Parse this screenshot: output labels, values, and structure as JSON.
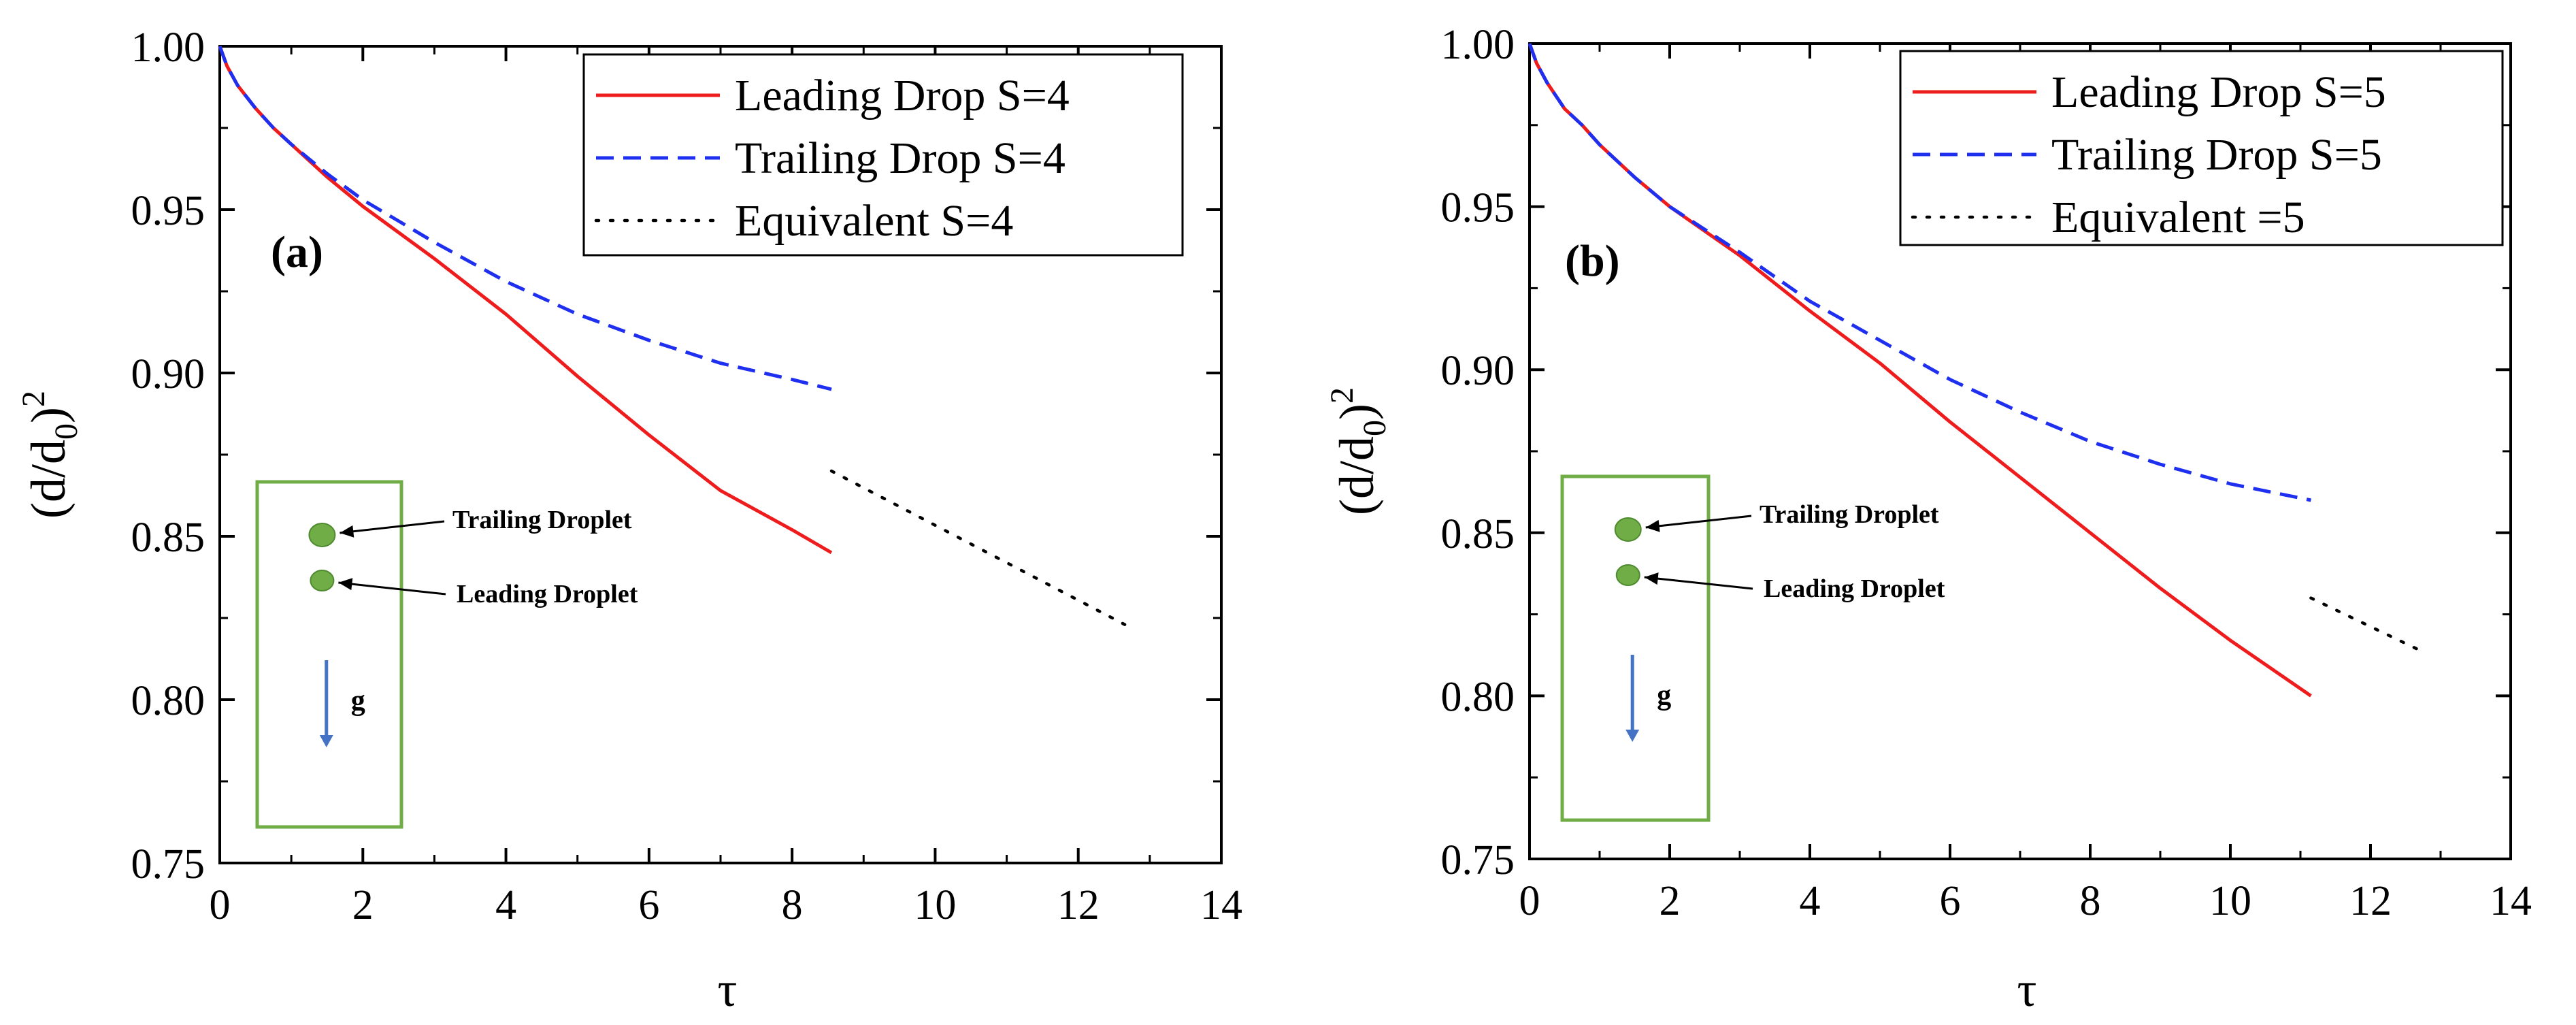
{
  "chart_data": [
    {
      "type": "line",
      "panel_label": "(a)",
      "xlabel": "τ",
      "ylabel": {
        "base": "(d/d",
        "sub": "0",
        "close": ")",
        "sup": "2"
      },
      "xlim": [
        0,
        14
      ],
      "ylim": [
        0.75,
        1.0
      ],
      "xticks": [
        "0",
        "2",
        "4",
        "6",
        "8",
        "10",
        "12",
        "14"
      ],
      "yticks": [
        "0.75",
        "0.80",
        "0.85",
        "0.90",
        "0.95",
        "1.00"
      ],
      "legend_position": "top-right",
      "series": [
        {
          "name": "Leading Drop S=4",
          "style": "solid",
          "color": "#ee1c1c",
          "x": [
            0,
            0.1,
            0.25,
            0.5,
            0.75,
            1.0,
            1.5,
            2.0,
            3.0,
            4.0,
            5.0,
            6.0,
            7.0,
            8.0,
            8.55
          ],
          "y": [
            1.0,
            0.994,
            0.988,
            0.981,
            0.975,
            0.97,
            0.96,
            0.951,
            0.935,
            0.918,
            0.899,
            0.881,
            0.864,
            0.852,
            0.845
          ]
        },
        {
          "name": "Trailing Drop S=4",
          "style": "dashed",
          "color": "#1e2ff0",
          "x": [
            0,
            0.1,
            0.25,
            0.5,
            0.75,
            1.0,
            1.5,
            2.0,
            3.0,
            4.0,
            5.0,
            6.0,
            7.0,
            8.0,
            8.55
          ],
          "y": [
            1.0,
            0.994,
            0.988,
            0.981,
            0.975,
            0.97,
            0.961,
            0.953,
            0.94,
            0.928,
            0.918,
            0.91,
            0.903,
            0.898,
            0.895
          ]
        },
        {
          "name": "Equivalent S=4",
          "style": "dotted",
          "color": "#000000",
          "x": [
            8.55,
            12.65
          ],
          "y": [
            0.87,
            0.823
          ]
        }
      ],
      "inset": {
        "labels": [
          "Trailing Droplet",
          "Leading Droplet",
          "g"
        ]
      }
    },
    {
      "type": "line",
      "panel_label": "(b)",
      "xlabel": "τ",
      "ylabel": {
        "base": "(d/d",
        "sub": "0",
        "close": ")",
        "sup": "2"
      },
      "xlim": [
        0,
        14
      ],
      "ylim": [
        0.75,
        1.0
      ],
      "xticks": [
        "0",
        "2",
        "4",
        "6",
        "8",
        "10",
        "12",
        "14"
      ],
      "yticks": [
        "0.75",
        "0.80",
        "0.85",
        "0.90",
        "0.95",
        "1.00"
      ],
      "legend_position": "top-right",
      "series": [
        {
          "name": "Leading Drop S=5",
          "style": "solid",
          "color": "#ee1c1c",
          "x": [
            0,
            0.1,
            0.25,
            0.5,
            0.75,
            1.0,
            1.5,
            2.0,
            3.0,
            4.0,
            5.0,
            6.0,
            7.0,
            8.0,
            9.0,
            10.0,
            11.15
          ],
          "y": [
            1.0,
            0.994,
            0.988,
            0.98,
            0.975,
            0.969,
            0.959,
            0.95,
            0.935,
            0.918,
            0.902,
            0.884,
            0.867,
            0.85,
            0.833,
            0.817,
            0.8
          ]
        },
        {
          "name": "Trailing Drop S=5",
          "style": "dashed",
          "color": "#1e2ff0",
          "x": [
            0,
            0.1,
            0.25,
            0.5,
            0.75,
            1.0,
            1.5,
            2.0,
            3.0,
            4.0,
            5.0,
            6.0,
            7.0,
            8.0,
            9.0,
            10.0,
            11.15
          ],
          "y": [
            1.0,
            0.994,
            0.988,
            0.98,
            0.975,
            0.969,
            0.959,
            0.95,
            0.936,
            0.921,
            0.909,
            0.897,
            0.887,
            0.878,
            0.871,
            0.865,
            0.86
          ]
        },
        {
          "name": "Equivalent =5",
          "style": "dotted",
          "color": "#000000",
          "x": [
            11.15,
            12.7
          ],
          "y": [
            0.83,
            0.814
          ]
        }
      ],
      "inset": {
        "labels": [
          "Trailing Droplet",
          "Leading Droplet",
          "g"
        ]
      }
    }
  ]
}
